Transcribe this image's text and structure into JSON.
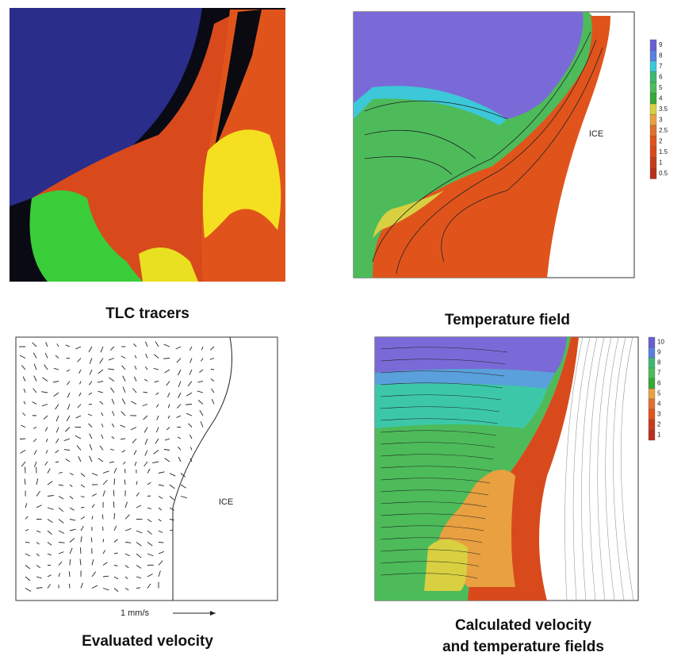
{
  "panels": [
    {
      "caption": "TLC tracers"
    },
    {
      "caption": "Temperature field",
      "label": "ICE",
      "legend": [
        "9",
        "8",
        "7",
        "6",
        "5",
        "4",
        "3.5",
        "3",
        "2.5",
        "2",
        "1.5",
        "1",
        "0.5"
      ]
    },
    {
      "caption": "Evaluated velocity",
      "label": "ICE",
      "scale": "1 mm/s"
    },
    {
      "caption": [
        "Calculated velocity",
        "and temperature fields"
      ],
      "legend": [
        "10",
        "9",
        "8",
        "7",
        "6",
        "5",
        "4",
        "3",
        "2",
        "1"
      ]
    }
  ]
}
